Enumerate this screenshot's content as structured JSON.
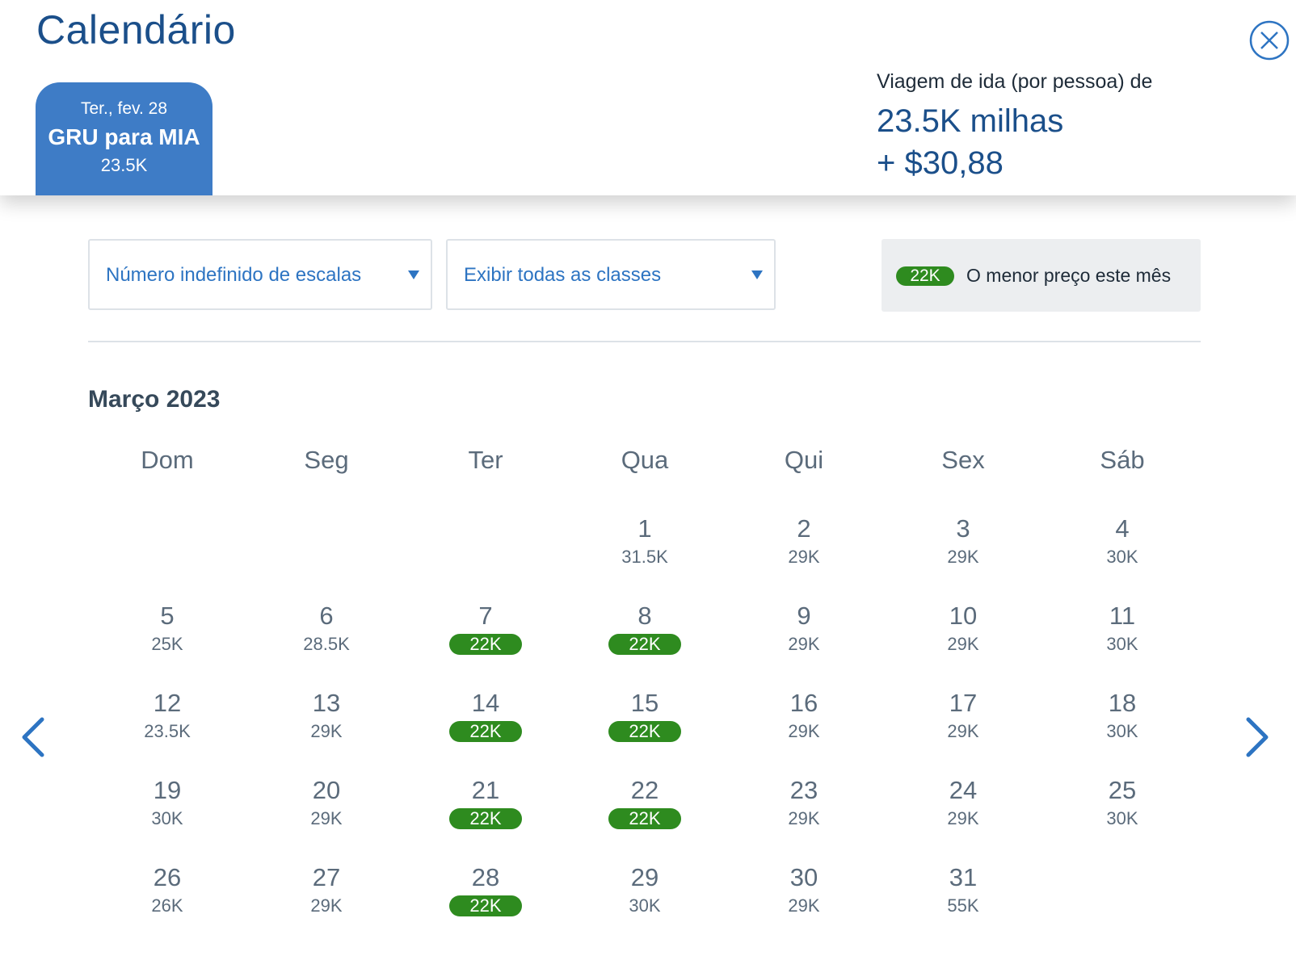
{
  "header": {
    "title": "Calendário",
    "close_label": "close"
  },
  "flight_tab": {
    "date": "Ter., fev. 28",
    "route": "GRU para MIA",
    "price": "23.5K"
  },
  "trip_summary": {
    "label": "Viagem de ida (por pessoa) de",
    "miles": "23.5K milhas",
    "cash": "+ $30,88"
  },
  "filters": {
    "stops": "Número indefinido de escalas",
    "classes": "Exibir todas as classes"
  },
  "legend": {
    "badge": "22K",
    "text": "O menor preço este mês"
  },
  "calendar": {
    "month": "Março 2023",
    "weekdays": [
      "Dom",
      "Seg",
      "Ter",
      "Qua",
      "Qui",
      "Sex",
      "Sáb"
    ],
    "start_weekday": 3,
    "days": [
      {
        "day": "1",
        "price": "31.5K",
        "lowest": false
      },
      {
        "day": "2",
        "price": "29K",
        "lowest": false
      },
      {
        "day": "3",
        "price": "29K",
        "lowest": false
      },
      {
        "day": "4",
        "price": "30K",
        "lowest": false
      },
      {
        "day": "5",
        "price": "25K",
        "lowest": false
      },
      {
        "day": "6",
        "price": "28.5K",
        "lowest": false
      },
      {
        "day": "7",
        "price": "22K",
        "lowest": true
      },
      {
        "day": "8",
        "price": "22K",
        "lowest": true
      },
      {
        "day": "9",
        "price": "29K",
        "lowest": false
      },
      {
        "day": "10",
        "price": "29K",
        "lowest": false
      },
      {
        "day": "11",
        "price": "30K",
        "lowest": false
      },
      {
        "day": "12",
        "price": "23.5K",
        "lowest": false
      },
      {
        "day": "13",
        "price": "29K",
        "lowest": false
      },
      {
        "day": "14",
        "price": "22K",
        "lowest": true
      },
      {
        "day": "15",
        "price": "22K",
        "lowest": true
      },
      {
        "day": "16",
        "price": "29K",
        "lowest": false
      },
      {
        "day": "17",
        "price": "29K",
        "lowest": false
      },
      {
        "day": "18",
        "price": "30K",
        "lowest": false
      },
      {
        "day": "19",
        "price": "30K",
        "lowest": false
      },
      {
        "day": "20",
        "price": "29K",
        "lowest": false
      },
      {
        "day": "21",
        "price": "22K",
        "lowest": true
      },
      {
        "day": "22",
        "price": "22K",
        "lowest": true
      },
      {
        "day": "23",
        "price": "29K",
        "lowest": false
      },
      {
        "day": "24",
        "price": "29K",
        "lowest": false
      },
      {
        "day": "25",
        "price": "30K",
        "lowest": false
      },
      {
        "day": "26",
        "price": "26K",
        "lowest": false
      },
      {
        "day": "27",
        "price": "29K",
        "lowest": false
      },
      {
        "day": "28",
        "price": "22K",
        "lowest": true
      },
      {
        "day": "29",
        "price": "30K",
        "lowest": false
      },
      {
        "day": "30",
        "price": "29K",
        "lowest": false
      },
      {
        "day": "31",
        "price": "55K",
        "lowest": false
      }
    ]
  },
  "nav": {
    "prev_icon": "chevron-left-icon",
    "next_icon": "chevron-right-icon"
  },
  "colors": {
    "brand_blue": "#1b4f8a",
    "tab_blue": "#3e7cc6",
    "link_blue": "#2d74c2",
    "lowest_green": "#2e8b1f",
    "text_gray": "#5b6b7b"
  }
}
